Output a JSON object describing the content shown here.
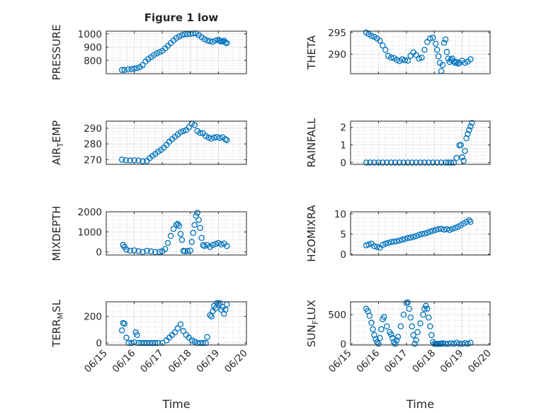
{
  "figure": {
    "title": "Figure 1 low"
  },
  "colors": {
    "marker": "#0072BD",
    "axis": "#262626",
    "grid": "#BFBFBF",
    "background": "#FFFFFF"
  },
  "chart_data": [
    {
      "type": "scatter",
      "ylabel_parts": [
        "PRESSURE"
      ],
      "title": "Figure 1 low",
      "xlim": [
        "06/15",
        "06/20"
      ],
      "ylim": [
        700,
        1020
      ],
      "yticks": [
        800,
        900,
        1000
      ],
      "yticklabels": [
        "800",
        "900",
        "1000"
      ],
      "xticklabels": [],
      "xlabel": "",
      "grid": true,
      "x": [
        0.56,
        0.65,
        0.78,
        0.9,
        1.0,
        1.1,
        1.2,
        1.3,
        1.4,
        1.5,
        1.6,
        1.7,
        1.8,
        1.9,
        2.0,
        2.1,
        2.2,
        2.3,
        2.4,
        2.5,
        2.6,
        2.7,
        2.8,
        2.9,
        3.0,
        3.1,
        3.2,
        3.3,
        3.4,
        3.5,
        3.6,
        3.7,
        3.8,
        3.9,
        4.0,
        4.05,
        4.1,
        4.15,
        4.2,
        4.25,
        4.3
      ],
      "y": [
        728,
        728,
        732,
        734,
        738,
        742,
        750,
        765,
        792,
        810,
        825,
        840,
        852,
        862,
        872,
        890,
        910,
        930,
        950,
        968,
        980,
        990,
        996,
        998,
        1000,
        1002,
        1003,
        990,
        975,
        960,
        950,
        945,
        940,
        950,
        955,
        948,
        942,
        944,
        948,
        935,
        930
      ]
    },
    {
      "type": "scatter",
      "ylabel_parts": [
        "THETA"
      ],
      "xlim": [
        "06/15",
        "06/20"
      ],
      "ylim": [
        285.5,
        295.3
      ],
      "yticks": [
        290,
        295
      ],
      "yticklabels": [
        "290",
        "295"
      ],
      "xticklabels": [],
      "xlabel": "",
      "grid": true,
      "x": [
        0.56,
        0.65,
        0.75,
        0.85,
        0.95,
        1.05,
        1.15,
        1.25,
        1.35,
        1.45,
        1.55,
        1.65,
        1.75,
        1.85,
        1.95,
        2.05,
        2.15,
        2.25,
        2.35,
        2.45,
        2.55,
        2.65,
        2.75,
        2.85,
        2.95,
        3.05,
        3.1,
        3.15,
        3.2,
        3.25,
        3.3,
        3.35,
        3.4,
        3.45,
        3.5,
        3.55,
        3.6,
        3.65,
        3.7,
        3.75,
        3.8,
        3.85,
        3.9,
        4.0,
        4.1,
        4.2,
        4.3
      ],
      "y": [
        295.0,
        294.6,
        294.2,
        294.0,
        293.6,
        293.1,
        292.0,
        291.0,
        289.6,
        289.2,
        289.1,
        288.7,
        288.4,
        288.8,
        288.6,
        288.5,
        289.6,
        290.4,
        289.8,
        289.0,
        289.2,
        291.0,
        292.8,
        293.6,
        293.8,
        292.4,
        291.0,
        289.5,
        288.0,
        286.1,
        287.5,
        292.6,
        293.4,
        290.5,
        289.0,
        288.2,
        288.7,
        289.0,
        288.3,
        288.0,
        288.2,
        287.8,
        288.0,
        288.5,
        288.0,
        288.3,
        288.8
      ]
    },
    {
      "type": "scatter",
      "ylabel_parts": [
        "AIR",
        "T",
        "EMP"
      ],
      "xlim": [
        "06/15",
        "06/20"
      ],
      "ylim": [
        267,
        294.5
      ],
      "yticks": [
        270,
        280,
        290
      ],
      "yticklabels": [
        "270",
        "280",
        "290"
      ],
      "xticklabels": [],
      "xlabel": "",
      "grid": true,
      "x": [
        0.56,
        0.7,
        0.85,
        1.0,
        1.15,
        1.3,
        1.45,
        1.55,
        1.65,
        1.75,
        1.85,
        1.95,
        2.05,
        2.15,
        2.25,
        2.35,
        2.45,
        2.55,
        2.65,
        2.75,
        2.85,
        2.95,
        3.05,
        3.15,
        3.25,
        3.35,
        3.45,
        3.55,
        3.65,
        3.75,
        3.85,
        3.95,
        4.05,
        4.15,
        4.25,
        4.3
      ],
      "y": [
        270.0,
        269.6,
        269.4,
        269.6,
        269.4,
        269.0,
        269.2,
        271.0,
        272.4,
        273.6,
        275.0,
        276.2,
        277.6,
        279.4,
        281.4,
        283.0,
        284.6,
        286.0,
        287.4,
        288.2,
        288.8,
        290.6,
        293.0,
        292.0,
        288.2,
        287.0,
        286.8,
        285.0,
        284.0,
        283.4,
        284.0,
        284.4,
        283.8,
        284.2,
        283.0,
        282.4
      ]
    },
    {
      "type": "scatter",
      "ylabel_parts": [
        "RAINFALL"
      ],
      "xlim": [
        "06/15",
        "06/20"
      ],
      "ylim": [
        -0.1,
        2.35
      ],
      "yticks": [
        0,
        1,
        2
      ],
      "yticklabels": [
        "0",
        "1",
        "2"
      ],
      "xticklabels": [],
      "xlabel": "",
      "grid": true,
      "x": [
        0.56,
        0.7,
        0.85,
        1.0,
        1.15,
        1.3,
        1.45,
        1.6,
        1.75,
        1.9,
        2.05,
        2.2,
        2.35,
        2.5,
        2.65,
        2.8,
        2.95,
        3.1,
        3.25,
        3.4,
        3.5,
        3.6,
        3.7,
        3.8,
        3.9,
        3.95,
        4.0,
        4.05,
        4.1,
        4.15,
        4.2,
        4.25,
        4.3,
        4.35
      ],
      "y": [
        0,
        0,
        0,
        0,
        0,
        0,
        0,
        0,
        0,
        0,
        0,
        0,
        0,
        0,
        0,
        0,
        0,
        0,
        0,
        0,
        0,
        0,
        0,
        0.26,
        0.98,
        1.0,
        0.3,
        0.1,
        0.66,
        1.38,
        1.62,
        1.85,
        2.05,
        2.25
      ]
    },
    {
      "type": "scatter",
      "ylabel_parts": [
        "MIXDEPTH"
      ],
      "xlim": [
        "06/15",
        "06/20"
      ],
      "ylim": [
        -150,
        2000
      ],
      "yticks": [
        0,
        1000,
        2000
      ],
      "yticklabels": [
        "0",
        "1000",
        "2000"
      ],
      "xticklabels": [],
      "xlabel": "",
      "grid": true,
      "x": [
        0.6,
        0.65,
        0.72,
        0.85,
        1.0,
        1.15,
        1.3,
        1.45,
        1.6,
        1.75,
        1.9,
        2.0,
        2.1,
        2.2,
        2.3,
        2.4,
        2.5,
        2.55,
        2.6,
        2.65,
        2.7,
        2.75,
        2.8,
        2.9,
        3.0,
        3.05,
        3.1,
        3.15,
        3.2,
        3.25,
        3.3,
        3.35,
        3.4,
        3.45,
        3.5,
        3.6,
        3.7,
        3.8,
        3.9,
        4.0,
        4.1,
        4.2,
        4.3
      ],
      "y": [
        350,
        250,
        120,
        60,
        80,
        40,
        0,
        60,
        30,
        0,
        10,
        40,
        150,
        450,
        800,
        1150,
        1350,
        1400,
        1300,
        900,
        600,
        60,
        40,
        50,
        70,
        500,
        950,
        1350,
        1800,
        1950,
        1600,
        1200,
        700,
        350,
        300,
        350,
        250,
        350,
        400,
        450,
        380,
        420,
        300
      ]
    },
    {
      "type": "scatter",
      "ylabel_parts": [
        "H2OMIXRA"
      ],
      "xlim": [
        "06/15",
        "06/20"
      ],
      "ylim": [
        -0.2,
        10.5
      ],
      "yticks": [
        0,
        5,
        10
      ],
      "yticklabels": [
        "0",
        "5",
        "10"
      ],
      "xticklabels": [],
      "xlabel": "",
      "grid": true,
      "x": [
        0.56,
        0.65,
        0.75,
        0.85,
        0.95,
        1.05,
        1.15,
        1.25,
        1.35,
        1.45,
        1.55,
        1.65,
        1.75,
        1.85,
        1.95,
        2.05,
        2.15,
        2.25,
        2.35,
        2.45,
        2.55,
        2.65,
        2.75,
        2.85,
        2.95,
        3.05,
        3.15,
        3.25,
        3.35,
        3.45,
        3.55,
        3.65,
        3.75,
        3.85,
        3.95,
        4.05,
        4.15,
        4.25,
        4.3
      ],
      "y": [
        2.2,
        2.4,
        2.6,
        2.0,
        1.8,
        1.6,
        2.3,
        2.6,
        2.8,
        3.0,
        3.1,
        3.2,
        3.4,
        3.6,
        3.8,
        4.0,
        4.1,
        4.3,
        4.5,
        4.8,
        5.0,
        5.1,
        5.3,
        5.6,
        5.8,
        6.0,
        6.2,
        6.3,
        6.1,
        6.2,
        6.0,
        6.3,
        6.5,
        6.8,
        7.2,
        7.6,
        8.0,
        8.4,
        8.0
      ]
    },
    {
      "type": "scatter",
      "ylabel_parts": [
        "TERR",
        "M",
        "SL"
      ],
      "xlim": [
        "06/15",
        "06/20"
      ],
      "ylim": [
        -15,
        310
      ],
      "yticks": [
        0,
        200
      ],
      "yticklabels": [
        "0",
        "200"
      ],
      "xticks": [
        "06/15",
        "06/16",
        "06/17",
        "06/18",
        "06/19",
        "06/20"
      ],
      "xticklabels": [
        "06/15",
        "06/16",
        "06/17",
        "06/18",
        "06/19",
        "06/20"
      ],
      "xlabel": "Time",
      "grid": true,
      "x": [
        0.56,
        0.6,
        0.65,
        0.72,
        0.8,
        0.9,
        1.0,
        1.05,
        1.1,
        1.15,
        1.25,
        1.35,
        1.45,
        1.55,
        1.65,
        1.75,
        1.85,
        2.0,
        2.15,
        2.25,
        2.35,
        2.45,
        2.55,
        2.65,
        2.75,
        2.85,
        2.95,
        3.05,
        3.15,
        3.25,
        3.35,
        3.45,
        3.55,
        3.6,
        3.7,
        3.75,
        3.8,
        3.85,
        3.9,
        3.95,
        4.0,
        4.05,
        4.1,
        4.15,
        4.2,
        4.25,
        4.3
      ],
      "y": [
        95,
        150,
        145,
        40,
        0,
        0,
        5,
        80,
        60,
        0,
        0,
        0,
        0,
        0,
        0,
        0,
        0,
        0,
        20,
        40,
        60,
        80,
        110,
        140,
        90,
        60,
        40,
        20,
        10,
        0,
        0,
        0,
        0,
        45,
        210,
        200,
        240,
        280,
        260,
        300,
        290,
        300,
        250,
        270,
        220,
        250,
        290
      ]
    },
    {
      "type": "scatter",
      "ylabel_parts": [
        "SUN",
        "F",
        "LUX"
      ],
      "xlim": [
        "06/15",
        "06/20"
      ],
      "ylim": [
        -20,
        720
      ],
      "yticks": [
        0,
        500
      ],
      "yticklabels": [
        "0",
        "500"
      ],
      "xticks": [
        "06/15",
        "06/16",
        "06/17",
        "06/18",
        "06/19",
        "06/20"
      ],
      "xticklabels": [
        "06/15",
        "06/16",
        "06/17",
        "06/18",
        "06/19",
        "06/20"
      ],
      "xlabel": "Time",
      "grid": true,
      "x": [
        0.56,
        0.62,
        0.68,
        0.75,
        0.8,
        0.85,
        0.9,
        0.95,
        1.0,
        1.05,
        1.1,
        1.15,
        1.2,
        1.3,
        1.4,
        1.45,
        1.5,
        1.55,
        1.6,
        1.65,
        1.7,
        1.8,
        1.9,
        2.0,
        2.05,
        2.1,
        2.15,
        2.2,
        2.25,
        2.3,
        2.35,
        2.4,
        2.5,
        2.6,
        2.65,
        2.7,
        2.75,
        2.8,
        2.85,
        2.9,
        2.95,
        3.0,
        3.05,
        3.1,
        3.15,
        3.2,
        3.25,
        3.3,
        3.4,
        3.5,
        3.6,
        3.7,
        3.8,
        3.9,
        4.0,
        4.1,
        4.2,
        4.3
      ],
      "y": [
        600,
        560,
        480,
        360,
        250,
        150,
        80,
        30,
        0,
        100,
        250,
        420,
        460,
        300,
        200,
        160,
        100,
        30,
        0,
        60,
        120,
        300,
        500,
        700,
        710,
        600,
        450,
        300,
        150,
        0,
        60,
        200,
        350,
        500,
        600,
        650,
        600,
        450,
        300,
        150,
        30,
        0,
        0,
        0,
        0,
        0,
        0,
        10,
        0,
        0,
        10,
        0,
        20,
        0,
        0,
        10,
        0,
        20
      ]
    }
  ]
}
